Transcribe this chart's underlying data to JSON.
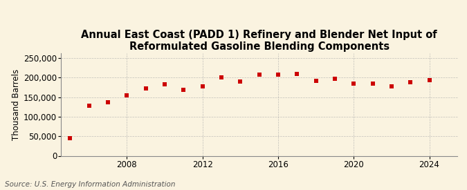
{
  "years": [
    2005,
    2006,
    2007,
    2008,
    2009,
    2010,
    2011,
    2012,
    2013,
    2014,
    2015,
    2016,
    2017,
    2018,
    2019,
    2020,
    2021,
    2022,
    2023,
    2024
  ],
  "values": [
    45000,
    128000,
    137000,
    155000,
    173000,
    183000,
    168000,
    178000,
    200000,
    190000,
    207000,
    208000,
    210000,
    192000,
    197000,
    185000,
    185000,
    178000,
    188000,
    193000
  ],
  "title": "Annual East Coast (PADD 1) Refinery and Blender Net Input of Reformulated Gasoline Blending Components",
  "ylabel": "Thousand Barrels",
  "source": "Source: U.S. Energy Information Administration",
  "marker_color": "#CC0000",
  "background_color": "#FAF3E0",
  "grid_color": "#AAAAAA",
  "ylim": [
    0,
    262500
  ],
  "yticks": [
    0,
    50000,
    100000,
    150000,
    200000,
    250000
  ],
  "xticks": [
    2008,
    2012,
    2016,
    2020,
    2024
  ],
  "xlim": [
    2004.5,
    2025.5
  ],
  "title_fontsize": 10.5,
  "axis_fontsize": 8.5,
  "source_fontsize": 7.5
}
